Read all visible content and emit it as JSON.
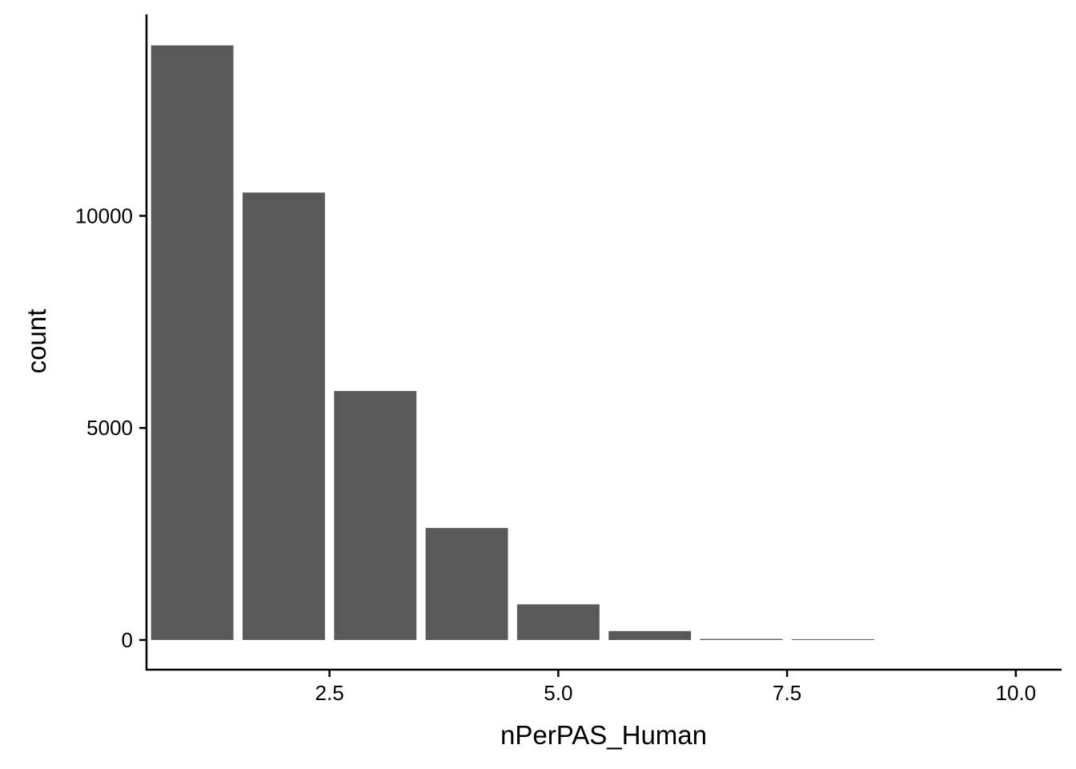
{
  "chart_data": {
    "type": "bar",
    "title": "",
    "xlabel": "nPerPAS_Human",
    "ylabel": "count",
    "x": [
      1,
      2,
      3,
      4,
      5,
      6,
      7,
      8
    ],
    "values": [
      14020,
      10550,
      5870,
      2640,
      840,
      210,
      25,
      10
    ],
    "xlim": [
      0.5,
      10.5
    ],
    "ylim": [
      -700,
      14750
    ],
    "x_ticks": [
      2.5,
      5.0,
      7.5,
      10.0
    ],
    "x_tick_labels": [
      "2.5",
      "5.0",
      "7.5",
      "10.0"
    ],
    "y_ticks": [
      0,
      5000,
      10000
    ],
    "y_tick_labels": [
      "0",
      "5000",
      "10000"
    ],
    "grid": false,
    "legend": "none",
    "bar_color": "#595959",
    "axis_color": "#000000"
  }
}
